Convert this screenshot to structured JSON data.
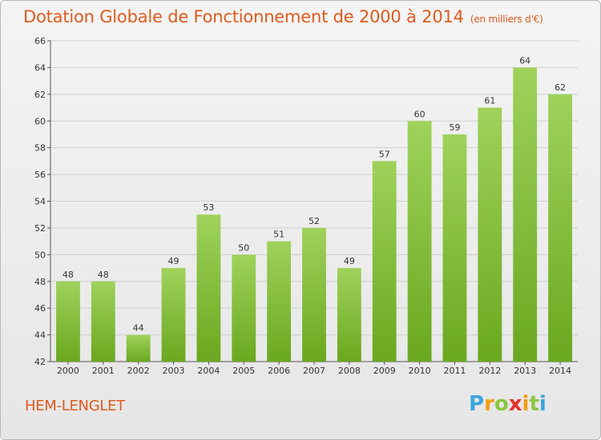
{
  "title": "Dotation Globale de Fonctionnement de 2000 à 2014",
  "subtitle": "(en milliers d'€)",
  "commune": "HEM-LENGLET",
  "logo": {
    "letters": [
      "P",
      "r",
      "o",
      "x",
      "i",
      "t",
      "i"
    ],
    "colors": [
      "#3aa6dd",
      "#f39c12",
      "#8cc63f",
      "#e8302a",
      "#f39c12",
      "#8cc63f",
      "#3aa6dd"
    ]
  },
  "colors": {
    "accent": "#e05a1e",
    "bar_top": "#9fd25b",
    "bar_bottom": "#6aa81f",
    "grid": "#cfcfcf"
  },
  "chart_data": {
    "type": "bar",
    "title": "Dotation Globale de Fonctionnement de 2000 à 2014",
    "subtitle": "(en milliers d'€)",
    "xlabel": "",
    "ylabel": "",
    "categories": [
      "2000",
      "2001",
      "2002",
      "2003",
      "2004",
      "2005",
      "2006",
      "2007",
      "2008",
      "2009",
      "2010",
      "2011",
      "2012",
      "2013",
      "2014"
    ],
    "values": [
      48,
      48,
      44,
      49,
      53,
      50,
      51,
      52,
      49,
      57,
      60,
      59,
      61,
      64,
      62
    ],
    "ylim": [
      42,
      66
    ],
    "yticks": [
      42,
      44,
      46,
      48,
      50,
      52,
      54,
      56,
      58,
      60,
      62,
      64,
      66
    ],
    "grid": true,
    "legend": "none"
  }
}
